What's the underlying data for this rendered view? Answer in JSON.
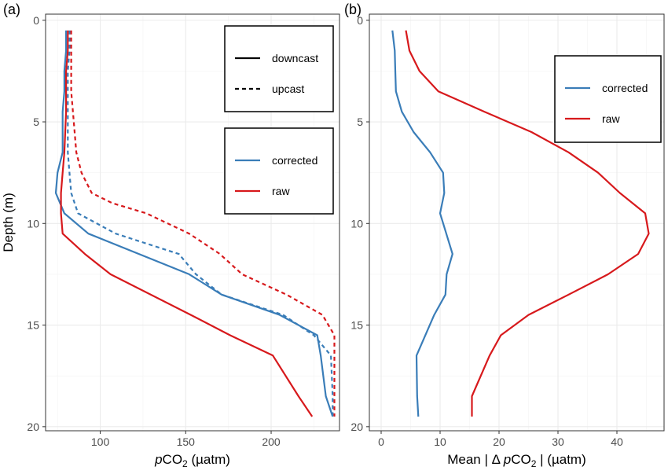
{
  "colors": {
    "corrected": "#3A7DB8",
    "raw": "#D7191C"
  },
  "chart_data": [
    {
      "type": "line",
      "panel_tag": "(a)",
      "ylabel": "Depth (m)",
      "xlabel_italic": "p",
      "xlabel_main": "CO",
      "xlabel_sub": "2",
      "xlabel_unit": " (µatm)",
      "xlim": [
        68,
        240
      ],
      "ylim": [
        20.2,
        -0.3
      ],
      "y_reversed": true,
      "xticks": [
        100,
        150,
        200
      ],
      "yticks": [
        0,
        5,
        10,
        15,
        20
      ],
      "grid": true,
      "series": [
        {
          "name": "corrected",
          "cast": "downcast",
          "color": "corrected",
          "x": [
            80,
            80,
            79,
            79,
            78,
            78,
            75,
            74,
            79,
            93,
            152,
            171,
            205,
            227,
            229,
            232,
            236
          ],
          "y": [
            0.5,
            1.5,
            2.5,
            3.5,
            4.5,
            6.5,
            7.5,
            8.5,
            9.5,
            10.5,
            12.5,
            13.5,
            14.5,
            15.5,
            16.5,
            18.5,
            19.5
          ]
        },
        {
          "name": "corrected",
          "cast": "upcast",
          "color": "corrected",
          "x": [
            82,
            82,
            81,
            81,
            81,
            81,
            82,
            83,
            87,
            109,
            146,
            156,
            171,
            207,
            225,
            235,
            236,
            236
          ],
          "y": [
            0.5,
            1.5,
            2.5,
            3.5,
            4.5,
            6.5,
            7.5,
            8.5,
            9.5,
            10.5,
            11.5,
            12.5,
            13.5,
            14.5,
            15.5,
            16.5,
            18.5,
            19.5
          ]
        },
        {
          "name": "raw",
          "cast": "downcast",
          "color": "raw",
          "x": [
            81,
            81,
            80,
            80,
            80,
            79,
            78,
            77,
            77,
            78,
            91,
            106,
            153,
            176,
            201,
            216,
            224
          ],
          "y": [
            0.5,
            1.5,
            2.5,
            3.5,
            4.5,
            6.5,
            7.5,
            8.5,
            9.5,
            10.5,
            11.5,
            12.5,
            14.5,
            15.5,
            16.5,
            18.5,
            19.5
          ]
        },
        {
          "name": "raw",
          "cast": "upcast",
          "color": "raw",
          "x": [
            83,
            83,
            83,
            83,
            84,
            86,
            89,
            95,
            107,
            127,
            152,
            170,
            183,
            209,
            230,
            237,
            237,
            237
          ],
          "y": [
            0.5,
            1.5,
            2.5,
            3.5,
            4.5,
            6.5,
            7.5,
            8.5,
            9.0,
            9.5,
            10.5,
            11.5,
            12.5,
            13.5,
            14.5,
            15.5,
            16.5,
            19.5
          ]
        }
      ],
      "legends": [
        {
          "items": [
            {
              "label": "downcast",
              "style": "solid"
            },
            {
              "label": "upcast",
              "style": "dashed"
            }
          ]
        },
        {
          "items": [
            {
              "label": "corrected",
              "color": "corrected"
            },
            {
              "label": "raw",
              "color": "raw"
            }
          ]
        }
      ],
      "legend_position": "top-right"
    },
    {
      "type": "line",
      "panel_tag": "(b)",
      "xlabel_pre": "Mean | Δ ",
      "xlabel_italic": "p",
      "xlabel_main": "CO",
      "xlabel_sub": "2",
      "xlabel_unit": " | (µatm)",
      "xlim": [
        -2,
        48
      ],
      "ylim": [
        20.2,
        -0.3
      ],
      "y_reversed": true,
      "xticks": [
        0,
        10,
        20,
        30,
        40
      ],
      "yticks": [
        0,
        5,
        10,
        15,
        20
      ],
      "grid": true,
      "series": [
        {
          "name": "corrected",
          "color": "corrected",
          "x": [
            1.9,
            2.3,
            2.4,
            2.5,
            3.5,
            5.5,
            8.3,
            10.5,
            10.7,
            10.0,
            12.1,
            11.1,
            10.9,
            9.0,
            6.0,
            6.1,
            6.3
          ],
          "y": [
            0.5,
            1.5,
            2.5,
            3.5,
            4.5,
            5.5,
            6.5,
            7.5,
            8.5,
            9.5,
            11.5,
            12.5,
            13.5,
            14.5,
            16.5,
            18.5,
            19.5
          ]
        },
        {
          "name": "raw",
          "color": "raw",
          "x": [
            4.2,
            4.8,
            6.5,
            9.7,
            17.5,
            25.5,
            31.8,
            36.8,
            40.5,
            44.8,
            45.4,
            43.6,
            38.5,
            31.8,
            25.0,
            20.3,
            18.4,
            15.4,
            15.4
          ],
          "y": [
            0.5,
            1.5,
            2.5,
            3.5,
            4.5,
            5.5,
            6.5,
            7.5,
            8.5,
            9.5,
            10.5,
            11.5,
            12.5,
            13.5,
            14.5,
            15.5,
            16.5,
            18.5,
            19.5
          ]
        }
      ],
      "legends": [
        {
          "items": [
            {
              "label": "corrected",
              "color": "corrected"
            },
            {
              "label": "raw",
              "color": "raw"
            }
          ]
        }
      ],
      "legend_position": "top-right"
    }
  ]
}
